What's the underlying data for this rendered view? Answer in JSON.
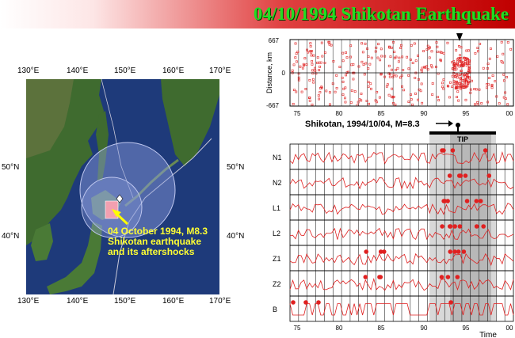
{
  "title": "04/10/1994 Shikotan Earthquake",
  "map": {
    "lon_top": [
      "130°E",
      "140°E",
      "150°E",
      "160°E",
      "170°E"
    ],
    "lon_bottom": [
      "130°E",
      "140°E",
      "150°E",
      "160°E",
      "170°E"
    ],
    "lat_left": [
      "50°N",
      "40°N"
    ],
    "lat_right": [
      "50°N",
      "40°N"
    ],
    "annotation": [
      "04 October 1994, M8.3",
      "Shikotan earthquake",
      "and its aftershocks"
    ],
    "colors": {
      "ocean": "#1e3a7a",
      "land": "#3f6b2f",
      "circle": "#8fa0e0",
      "aftershock": "#f2a0b0",
      "arrow": "#ffff00"
    }
  },
  "scatter": {
    "ylabel": "Distance, km",
    "yticks": [
      "667",
      "0",
      "-667"
    ],
    "xticks": [
      "75",
      "80",
      "85",
      "90",
      "95",
      "00"
    ]
  },
  "event_label": "Shikotan, 1994/10/04, M=8.3",
  "tip_label": "TIP",
  "panels": [
    "N1",
    "N2",
    "L1",
    "L2",
    "Z1",
    "Z2",
    "B"
  ],
  "xticks": [
    "75",
    "80",
    "85",
    "90",
    "95",
    "00"
  ],
  "xlabel": "Time"
}
